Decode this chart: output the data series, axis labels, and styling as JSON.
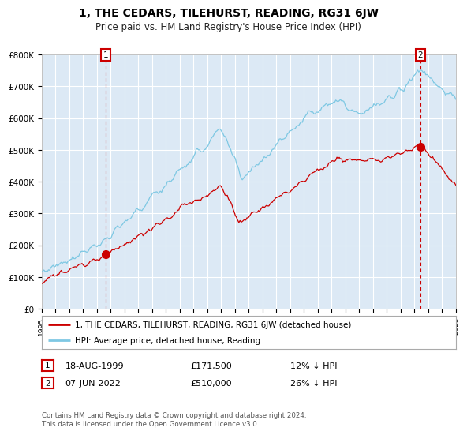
{
  "title": "1, THE CEDARS, TILEHURST, READING, RG31 6JW",
  "subtitle": "Price paid vs. HM Land Registry's House Price Index (HPI)",
  "x_start_year": 1995,
  "x_end_year": 2025,
  "y_min": 0,
  "y_max": 800000,
  "y_ticks": [
    0,
    100000,
    200000,
    300000,
    400000,
    500000,
    600000,
    700000,
    800000
  ],
  "y_tick_labels": [
    "£0",
    "£100K",
    "£200K",
    "£300K",
    "£400K",
    "£500K",
    "£600K",
    "£700K",
    "£800K"
  ],
  "bg_color": "#dce9f5",
  "plot_bg_color": "#dce9f5",
  "grid_color": "#ffffff",
  "red_line_color": "#cc0000",
  "blue_line_color": "#7ec8e3",
  "marker1_year": 1999.63,
  "marker1_value": 171500,
  "marker2_year": 2022.44,
  "marker2_value": 510000,
  "sale1_date": "18-AUG-1999",
  "sale1_price": "£171,500",
  "sale1_hpi": "12% ↓ HPI",
  "sale2_date": "07-JUN-2022",
  "sale2_price": "£510,000",
  "sale2_hpi": "26% ↓ HPI",
  "legend1": "1, THE CEDARS, TILEHURST, READING, RG31 6JW (detached house)",
  "legend2": "HPI: Average price, detached house, Reading",
  "footer": "Contains HM Land Registry data © Crown copyright and database right 2024.\nThis data is licensed under the Open Government Licence v3.0.",
  "title_fontsize": 10,
  "subtitle_fontsize": 8.5
}
